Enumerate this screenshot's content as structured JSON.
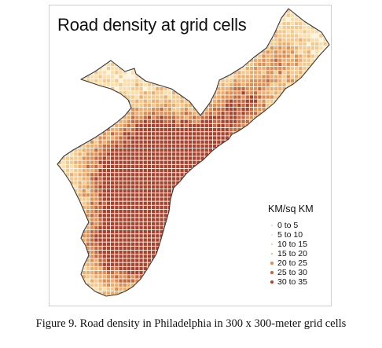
{
  "map": {
    "title": "Road density at grid cells",
    "legend": {
      "title": "KM/sq KM",
      "classes": [
        {
          "label": "0 to 5",
          "color": "#fff3dc"
        },
        {
          "label": "5 to 10",
          "color": "#f9deae"
        },
        {
          "label": "10 to 15",
          "color": "#f2c98f"
        },
        {
          "label": "15 to 20",
          "color": "#e9ae70"
        },
        {
          "label": "20 to 25",
          "color": "#dc9058"
        },
        {
          "label": "25 to 30",
          "color": "#c46a43"
        },
        {
          "label": "30 to 35",
          "color": "#a84332"
        }
      ]
    }
  },
  "caption": "Figure 9. Road density in Philadelphia in 300 x 300-meter grid cells"
}
